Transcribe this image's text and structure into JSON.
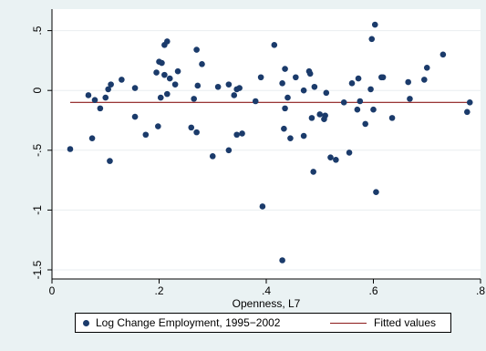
{
  "chart_data": {
    "type": "scatter",
    "title": "",
    "xlabel": "Openness, L7",
    "ylabel": "",
    "xlim": [
      0,
      0.8
    ],
    "ylim": [
      -1.5,
      0.55
    ],
    "xticks": [
      0,
      0.2,
      0.4,
      0.6,
      0.8
    ],
    "xtick_labels": [
      "0",
      ".2",
      ".4",
      ".6",
      ".8"
    ],
    "yticks": [
      -1.5,
      -1,
      -0.5,
      0,
      0.5
    ],
    "ytick_labels": [
      "-1.5",
      "-1",
      "-.5",
      "0",
      ".5"
    ],
    "grid": "horizontal",
    "legend_position": "bottom",
    "series": [
      {
        "name": "Log Change Employment, 1995−2002",
        "kind": "scatter",
        "color": "#1b3b6b",
        "points": [
          [
            0.034,
            -0.49
          ],
          [
            0.068,
            -0.04
          ],
          [
            0.075,
            -0.4
          ],
          [
            0.08,
            -0.08
          ],
          [
            0.09,
            -0.15
          ],
          [
            0.1,
            -0.06
          ],
          [
            0.105,
            0.01
          ],
          [
            0.108,
            -0.59
          ],
          [
            0.11,
            0.05
          ],
          [
            0.13,
            0.09
          ],
          [
            0.155,
            -0.22
          ],
          [
            0.155,
            0.02
          ],
          [
            0.175,
            -0.37
          ],
          [
            0.195,
            0.15
          ],
          [
            0.198,
            -0.3
          ],
          [
            0.2,
            0.24
          ],
          [
            0.203,
            -0.06
          ],
          [
            0.205,
            0.23
          ],
          [
            0.21,
            0.13
          ],
          [
            0.21,
            0.38
          ],
          [
            0.215,
            0.41
          ],
          [
            0.215,
            -0.03
          ],
          [
            0.22,
            0.1
          ],
          [
            0.23,
            0.05
          ],
          [
            0.235,
            0.16
          ],
          [
            0.26,
            -0.31
          ],
          [
            0.265,
            -0.07
          ],
          [
            0.27,
            0.34
          ],
          [
            0.27,
            -0.35
          ],
          [
            0.272,
            0.04
          ],
          [
            0.28,
            0.22
          ],
          [
            0.3,
            -0.55
          ],
          [
            0.31,
            0.03
          ],
          [
            0.33,
            -0.5
          ],
          [
            0.33,
            0.05
          ],
          [
            0.34,
            -0.04
          ],
          [
            0.345,
            -0.37
          ],
          [
            0.345,
            0.01
          ],
          [
            0.35,
            0.02
          ],
          [
            0.355,
            -0.36
          ],
          [
            0.38,
            -0.09
          ],
          [
            0.39,
            0.11
          ],
          [
            0.393,
            -0.97
          ],
          [
            0.415,
            0.38
          ],
          [
            0.43,
            0.06
          ],
          [
            0.43,
            -1.42
          ],
          [
            0.433,
            -0.32
          ],
          [
            0.435,
            0.18
          ],
          [
            0.435,
            -0.15
          ],
          [
            0.44,
            -0.06
          ],
          [
            0.445,
            -0.4
          ],
          [
            0.455,
            0.11
          ],
          [
            0.47,
            0.0
          ],
          [
            0.47,
            -0.38
          ],
          [
            0.48,
            0.16
          ],
          [
            0.482,
            0.14
          ],
          [
            0.485,
            -0.23
          ],
          [
            0.488,
            -0.68
          ],
          [
            0.49,
            0.03
          ],
          [
            0.5,
            -0.2
          ],
          [
            0.508,
            -0.24
          ],
          [
            0.51,
            -0.21
          ],
          [
            0.512,
            -0.02
          ],
          [
            0.52,
            -0.56
          ],
          [
            0.53,
            -0.58
          ],
          [
            0.545,
            -0.1
          ],
          [
            0.555,
            -0.52
          ],
          [
            0.56,
            0.06
          ],
          [
            0.57,
            -0.16
          ],
          [
            0.572,
            0.1
          ],
          [
            0.575,
            -0.09
          ],
          [
            0.585,
            -0.28
          ],
          [
            0.595,
            0.01
          ],
          [
            0.597,
            0.43
          ],
          [
            0.6,
            -0.16
          ],
          [
            0.603,
            0.55
          ],
          [
            0.605,
            -0.85
          ],
          [
            0.615,
            0.11
          ],
          [
            0.618,
            0.11
          ],
          [
            0.635,
            -0.23
          ],
          [
            0.665,
            0.07
          ],
          [
            0.668,
            -0.07
          ],
          [
            0.695,
            0.09
          ],
          [
            0.7,
            0.19
          ],
          [
            0.73,
            0.3
          ],
          [
            0.775,
            -0.18
          ],
          [
            0.78,
            -0.1
          ]
        ]
      },
      {
        "name": "Fitted values",
        "kind": "line",
        "color": "#8b1a1a",
        "points": [
          [
            0.034,
            -0.1
          ],
          [
            0.78,
            -0.1
          ]
        ]
      }
    ]
  }
}
